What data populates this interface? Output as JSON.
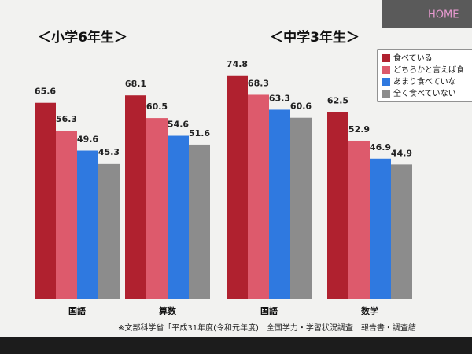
{
  "chart_data": {
    "type": "bar",
    "group_labels": [
      "＜小学6年生＞",
      "＜中学3年生＞"
    ],
    "categories": [
      "国語",
      "算数",
      "国語",
      "数学"
    ],
    "series": [
      {
        "name": "食べている",
        "color": "#b0212f",
        "values": [
          65.6,
          68.1,
          74.8,
          62.5
        ]
      },
      {
        "name": "どちらかと言えば食",
        "color": "#dd5a6c",
        "values": [
          56.3,
          60.5,
          68.3,
          52.9
        ]
      },
      {
        "name": "あまり食べていな",
        "color": "#2f79e0",
        "values": [
          49.6,
          54.6,
          63.3,
          46.9
        ]
      },
      {
        "name": "全く食べていない",
        "color": "#8c8c8c",
        "values": [
          45.3,
          51.6,
          60.6,
          44.9
        ]
      }
    ],
    "ylim": [
      0,
      90
    ],
    "note": "※文部科学省「平成31年度(令和元年度)　全国学力・学習状況調査　報告書・調査結"
  },
  "nav": {
    "home": "HOME"
  }
}
